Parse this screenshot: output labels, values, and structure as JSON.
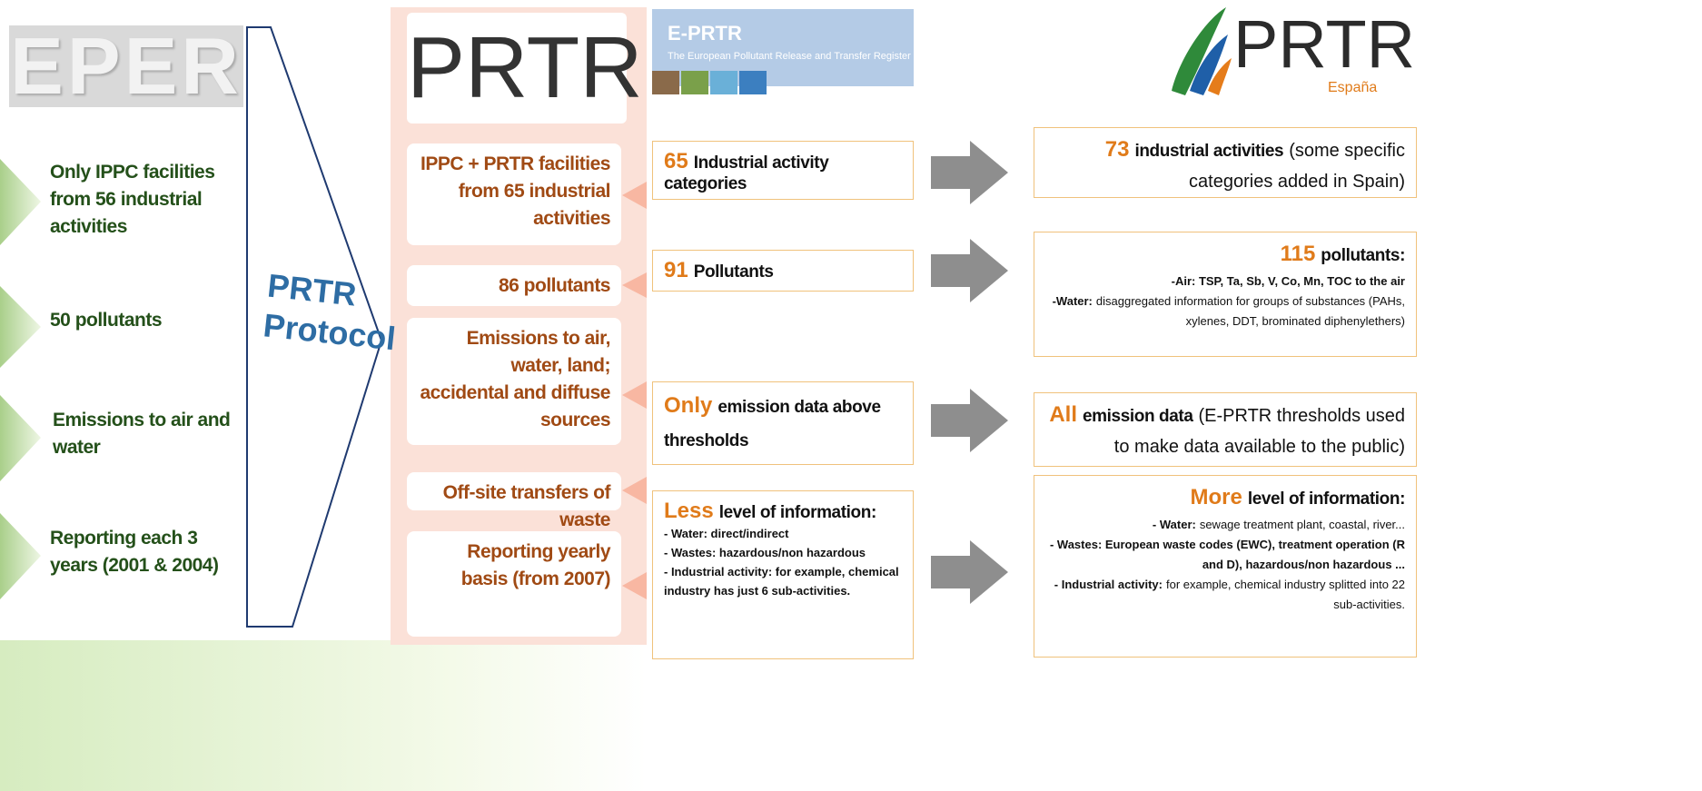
{
  "eper": {
    "logo": "EPER",
    "items": [
      "Only IPPC facilities from 56 industrial activities",
      "50 pollutants",
      "Emissions to air and water",
      "Reporting each 3 years (2001 & 2004)"
    ]
  },
  "protocol": {
    "lines": [
      "PRTR",
      "Protocol"
    ]
  },
  "prtr": {
    "logo": "PRTR",
    "items": [
      "IPPC + PRTR facilities from 65 industrial activities",
      "86 pollutants",
      "Emissions to air, water, land; accidental and diffuse sources",
      "Off-site transfers of waste",
      "Reporting yearly basis (from 2007)"
    ]
  },
  "eprtr": {
    "header": {
      "title": "E-PRTR",
      "subtitle": "The European Pollutant Release and Transfer Register"
    },
    "items": [
      {
        "highlight": "65",
        "text": "Industrial activity categories"
      },
      {
        "highlight": "91",
        "text": "Pollutants"
      },
      {
        "highlight": "Only",
        "text": "emission data above thresholds"
      },
      {
        "highlight": "Less",
        "text": "level of information:",
        "details": [
          "- Water: direct/indirect",
          "- Wastes: hazardous/non hazardous",
          "- Industrial activity: for example, chemical industry has just 6 sub-activities."
        ]
      }
    ]
  },
  "spain": {
    "logo": {
      "title": "PRTR",
      "subtitle": "España"
    },
    "items": [
      {
        "highlight": "73",
        "text": "industrial activities",
        "note": "(some specific categories added in Spain)"
      },
      {
        "highlight": "115",
        "text": "pollutants:",
        "details": [
          {
            "key": "-Air: TSP, Ta, Sb, V, Co, Mn, TOC to the air"
          },
          {
            "key": "-Water:",
            "text": "disaggregated information for groups of substances (PAHs, xylenes, DDT, brominated diphenylethers)"
          }
        ]
      },
      {
        "highlight": "All",
        "text": "emission data",
        "note": "(E-PRTR thresholds used to make data available to the public)"
      },
      {
        "highlight": "More",
        "text": "level of information:",
        "details": [
          {
            "key": "- Water:",
            "text": "sewage treatment plant, coastal, river..."
          },
          {
            "key": "- Wastes: European waste codes (EWC), treatment operation (R and D), hazardous/non hazardous ..."
          },
          {
            "key": "- Industrial activity:",
            "text": "for example, chemical industry splitted into 22 sub-activities."
          }
        ]
      }
    ]
  }
}
